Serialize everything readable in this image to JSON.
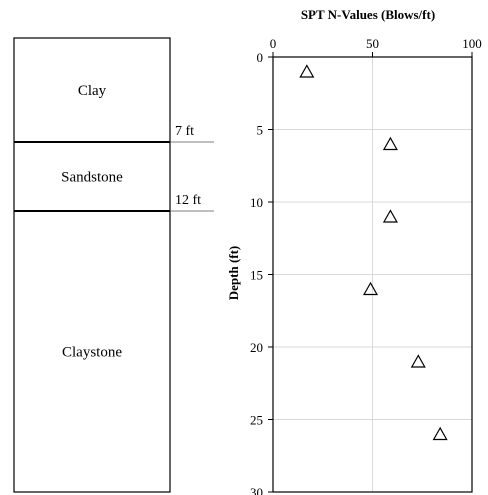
{
  "strata": {
    "layers": [
      {
        "name": "Clay",
        "top": 0,
        "bottom": 7
      },
      {
        "name": "Sandstone",
        "top": 7,
        "bottom": 12
      },
      {
        "name": "Claystone",
        "top": 12,
        "bottom": 30
      }
    ],
    "boundary_labels": [
      "7 ft",
      "12 ft"
    ]
  },
  "chart_data": {
    "type": "scatter",
    "title": "SPT N-Values (Blows/ft)",
    "ylabel": "Depth (ft)",
    "xlabel": "",
    "xlim": [
      0,
      100
    ],
    "ylim": [
      0,
      30
    ],
    "y_inverted": true,
    "x_axis_position": "top",
    "x_ticks": [
      0,
      50,
      100
    ],
    "y_ticks": [
      0,
      5,
      10,
      15,
      20,
      25,
      30
    ],
    "grid": true,
    "marker": "open-triangle",
    "series": [
      {
        "points": [
          {
            "x": 17,
            "y": 1
          },
          {
            "x": 59,
            "y": 6
          },
          {
            "x": 59,
            "y": 11
          },
          {
            "x": 49,
            "y": 16
          },
          {
            "x": 73,
            "y": 21
          },
          {
            "x": 84,
            "y": 26
          }
        ]
      }
    ],
    "colors": {
      "grid": "#d9d9d9",
      "axis": "#000000",
      "marker": "#000000"
    }
  }
}
